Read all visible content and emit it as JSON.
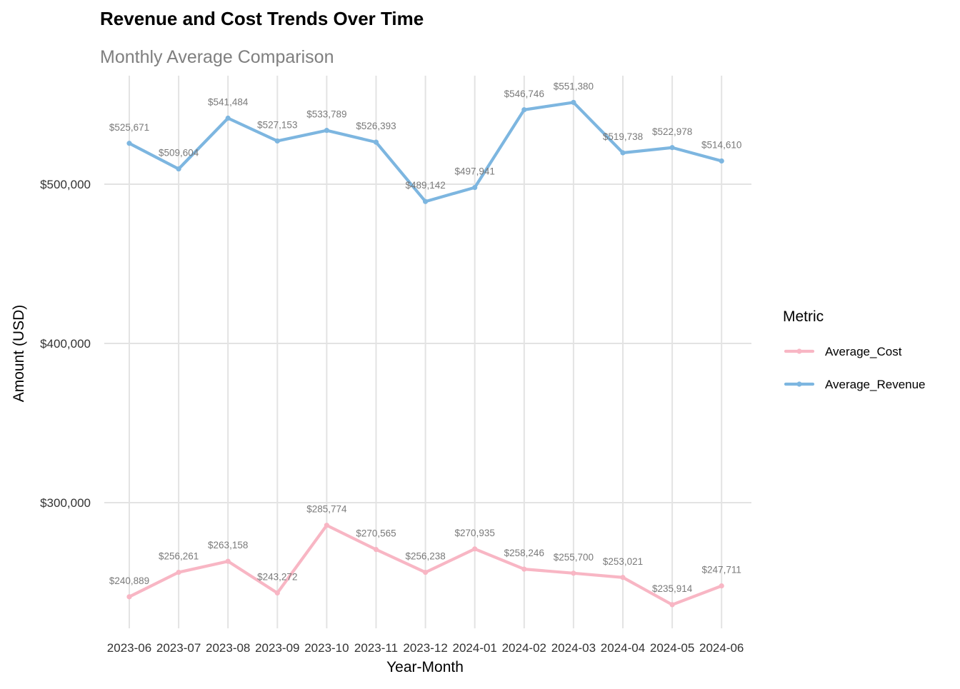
{
  "chart_data": {
    "type": "line",
    "title": "Revenue and Cost Trends Over Time",
    "subtitle": "Monthly Average Comparison",
    "xlabel": "Year-Month",
    "ylabel": "Amount (USD)",
    "categories": [
      "2023-06",
      "2023-07",
      "2023-08",
      "2023-09",
      "2023-10",
      "2023-11",
      "2023-12",
      "2024-01",
      "2024-02",
      "2024-03",
      "2024-04",
      "2024-05",
      "2024-06"
    ],
    "ylim": [
      225000,
      560000
    ],
    "y_ticks": [
      300000,
      400000,
      500000
    ],
    "y_tick_labels": [
      "$300,000",
      "$400,000",
      "$500,000"
    ],
    "grid": true,
    "legend": {
      "title": "Metric",
      "position": "right"
    },
    "series": [
      {
        "name": "Average_Cost",
        "color": "#F8B6C4",
        "values": [
          240889,
          256261,
          263158,
          243272,
          285774,
          270565,
          256238,
          270935,
          258246,
          255700,
          253021,
          235914,
          247711
        ],
        "labels": [
          "$240,889",
          "$256,261",
          "$263,158",
          "$243,272",
          "$285,774",
          "$270,565",
          "$256,238",
          "$270,935",
          "$258,246",
          "$255,700",
          "$253,021",
          "$235,914",
          "$247,711"
        ]
      },
      {
        "name": "Average_Revenue",
        "color": "#7DB6E0",
        "values": [
          525671,
          509604,
          541484,
          527153,
          533789,
          526393,
          489142,
          497941,
          546746,
          551380,
          519738,
          522978,
          514610
        ],
        "labels": [
          "$525,671",
          "$509,604",
          "$541,484",
          "$527,153",
          "$533,789",
          "$526,393",
          "$489,142",
          "$497,941",
          "$546,746",
          "$551,380",
          "$519,738",
          "$522,978",
          "$514,610"
        ]
      }
    ]
  }
}
